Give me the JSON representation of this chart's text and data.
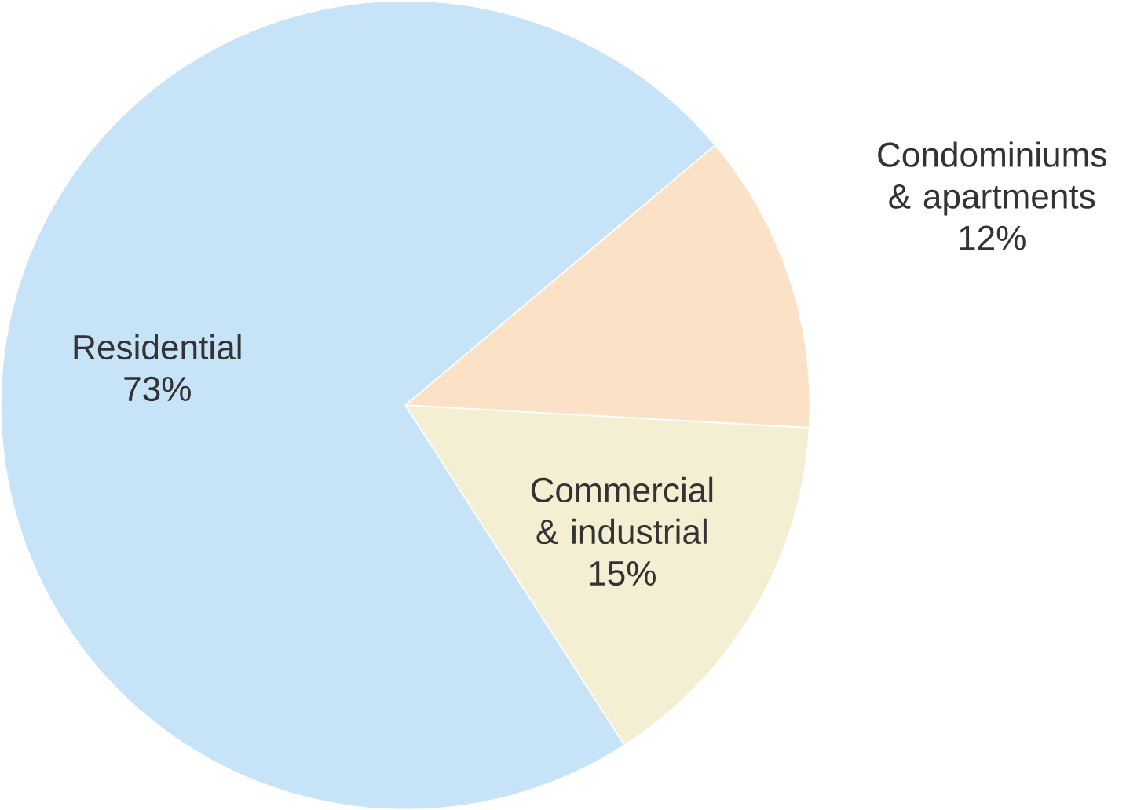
{
  "chart_data": {
    "type": "pie",
    "categories": [
      "Residential",
      "Commercial & industrial",
      "Condominiums & apartments"
    ],
    "values": [
      73,
      15,
      12
    ],
    "value_labels": [
      "73%",
      "15%",
      "12%"
    ],
    "colors": [
      "#c6e3f7",
      "#f4efd3",
      "#fbe2c6"
    ]
  }
}
